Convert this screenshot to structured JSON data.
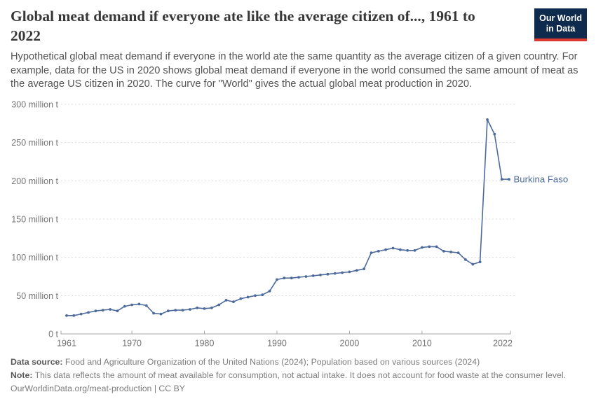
{
  "chart_data": {
    "type": "line",
    "title": "Global meat demand if everyone ate like the average citizen of..., 1961 to 2022",
    "subtitle": "Hypothetical global meat demand if everyone in the world ate the same quantity as the average citizen of a given country. For example, data for the US in 2020 shows global meat demand if everyone in the world consumed the same amount of meat as the average US citizen in 2020. The curve for \"World\" gives the actual global meat production in 2020.",
    "unit": "million t",
    "x": [
      1961,
      1962,
      1963,
      1964,
      1965,
      1966,
      1967,
      1968,
      1969,
      1970,
      1971,
      1972,
      1973,
      1974,
      1975,
      1976,
      1977,
      1978,
      1979,
      1980,
      1981,
      1982,
      1983,
      1984,
      1985,
      1986,
      1987,
      1988,
      1989,
      1990,
      1991,
      1992,
      1993,
      1994,
      1995,
      1996,
      1997,
      1998,
      1999,
      2000,
      2001,
      2002,
      2003,
      2004,
      2005,
      2006,
      2007,
      2008,
      2009,
      2010,
      2011,
      2012,
      2013,
      2014,
      2015,
      2016,
      2017,
      2018,
      2019,
      2020,
      2021,
      2022
    ],
    "series": [
      {
        "name": "Burkina Faso",
        "color": "#4c6a9c",
        "values": [
          24,
          24,
          26,
          28,
          30,
          31,
          32,
          30,
          36,
          38,
          39,
          37,
          27,
          26,
          30,
          31,
          31,
          32,
          34,
          33,
          34,
          38,
          44,
          42,
          46,
          48,
          50,
          51,
          56,
          71,
          73,
          73,
          74,
          75,
          76,
          77,
          78,
          79,
          80,
          81,
          83,
          85,
          106,
          108,
          110,
          112,
          110,
          109,
          109,
          113,
          114,
          114,
          108,
          107,
          106,
          97,
          91,
          94,
          280,
          261,
          202,
          202
        ]
      }
    ],
    "ylim": [
      0,
      300
    ],
    "yticks": [
      {
        "value": 0,
        "label": "0 t"
      },
      {
        "value": 50,
        "label": "50 million t"
      },
      {
        "value": 100,
        "label": "100 million t"
      },
      {
        "value": 150,
        "label": "150 million t"
      },
      {
        "value": 200,
        "label": "200 million t"
      },
      {
        "value": 250,
        "label": "250 million t"
      },
      {
        "value": 300,
        "label": "300 million t"
      }
    ],
    "xticks": [
      1961,
      1970,
      1980,
      1990,
      2000,
      2010,
      2022
    ],
    "grid": "dashed-horizontal",
    "legend": "inline-end-label"
  },
  "logo": {
    "line1": "Our World",
    "line2": "in Data",
    "bg_color": "#0e2a4d",
    "accent_color": "#dc382d"
  },
  "footer": {
    "data_source_label": "Data source:",
    "data_source_text": " Food and Agriculture Organization of the United Nations (2024); Population based on various sources (2024)",
    "note_label": "Note:",
    "note_text": " This data reflects the amount of meat available for consumption, not actual intake. It does not account for food waste at the consumer level.",
    "link": "OurWorldinData.org/meat-production | CC BY"
  },
  "colors": {
    "axis": "#a6a6a6",
    "grid": "#dcdcdc",
    "tick_text": "#757575",
    "title_text": "#383838",
    "subtitle_text": "#545454"
  }
}
